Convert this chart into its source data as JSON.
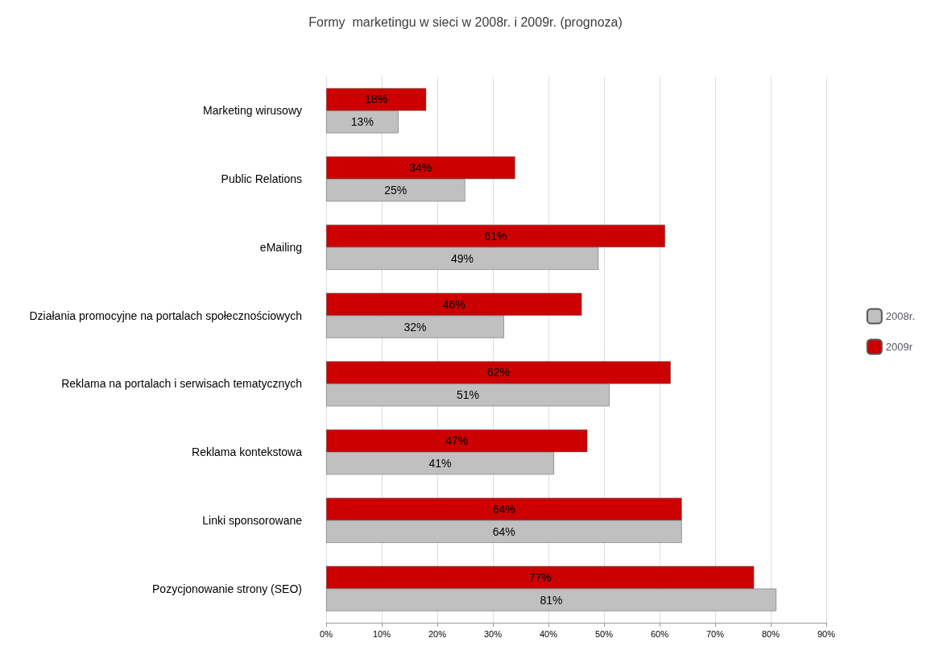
{
  "chart_data": {
    "type": "bar",
    "orientation": "horizontal",
    "title": "Formy  marketingu w sieci w 2008r. i 2009r. (prognoza)",
    "categories": [
      "Marketing wirusowy",
      "Public Relations",
      "eMailing",
      "Działania promocyjne na portalach społecznościowych",
      "Reklama na portalach i serwisach tematycznych",
      "Reklama kontekstowa",
      "Linki sponsorowane",
      "Pozycjonowanie strony (SEO)"
    ],
    "series": [
      {
        "name": "2008r.",
        "color": "#c0c0c0",
        "values": [
          13,
          25,
          49,
          32,
          51,
          41,
          64,
          81
        ],
        "value_labels": [
          "13%",
          "25%",
          "49%",
          "32%",
          "51%",
          "41%",
          "64%",
          "81%"
        ]
      },
      {
        "name": "2009r",
        "color": "#cc0000",
        "values": [
          18,
          34,
          61,
          46,
          62,
          47,
          64,
          77
        ],
        "value_labels": [
          "18%",
          "34%",
          "61%",
          "46%",
          "62%",
          "47%",
          "64%",
          "77%"
        ]
      }
    ],
    "xlim": [
      0,
      90
    ],
    "xticks": [
      {
        "value": 0,
        "label": "0%"
      },
      {
        "value": 10,
        "label": "10%"
      },
      {
        "value": 20,
        "label": "20%"
      },
      {
        "value": 30,
        "label": "30%"
      },
      {
        "value": 40,
        "label": "40%"
      },
      {
        "value": 50,
        "label": "50%"
      },
      {
        "value": 60,
        "label": "60%"
      },
      {
        "value": 70,
        "label": "70%"
      },
      {
        "value": 80,
        "label": "80%"
      },
      {
        "value": 90,
        "label": "90%"
      }
    ],
    "grid": "x",
    "legend": "right"
  }
}
